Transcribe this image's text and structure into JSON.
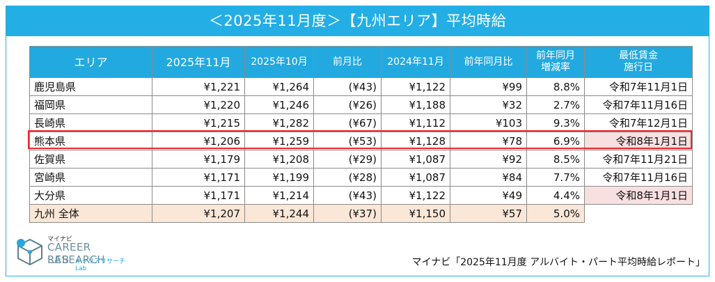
{
  "title": "＜2025年11月度＞【九州エリア】平均時給",
  "headers": {
    "area": "エリア",
    "nov2025": "2025年11月",
    "oct2025": "2025年10月",
    "mom": "前月比",
    "nov2024": "2024年11月",
    "yoy": "前年同月比",
    "yoy_rate_l1": "前年同月",
    "yoy_rate_l2": "増減率",
    "minwage_l1": "最低賃金",
    "minwage_l2": "施行日"
  },
  "rows": [
    {
      "area": "鹿児島県",
      "nov2025": "¥1,221",
      "oct2025": "¥1,264",
      "mom": "(¥43)",
      "nov2024": "¥1,122",
      "yoy": "¥99",
      "rate": "8.8%",
      "date": "令和7年11月1日"
    },
    {
      "area": "福岡県",
      "nov2025": "¥1,220",
      "oct2025": "¥1,246",
      "mom": "(¥26)",
      "nov2024": "¥1,188",
      "yoy": "¥32",
      "rate": "2.7%",
      "date": "令和7年11月16日"
    },
    {
      "area": "長崎県",
      "nov2025": "¥1,215",
      "oct2025": "¥1,282",
      "mom": "(¥67)",
      "nov2024": "¥1,112",
      "yoy": "¥103",
      "rate": "9.3%",
      "date": "令和7年12月1日"
    },
    {
      "area": "熊本県",
      "nov2025": "¥1,206",
      "oct2025": "¥1,259",
      "mom": "(¥53)",
      "nov2024": "¥1,128",
      "yoy": "¥78",
      "rate": "6.9%",
      "date": "令和8年1月1日"
    },
    {
      "area": "佐賀県",
      "nov2025": "¥1,179",
      "oct2025": "¥1,208",
      "mom": "(¥29)",
      "nov2024": "¥1,087",
      "yoy": "¥92",
      "rate": "8.5%",
      "date": "令和7年11月21日"
    },
    {
      "area": "宮崎県",
      "nov2025": "¥1,171",
      "oct2025": "¥1,199",
      "mom": "(¥28)",
      "nov2024": "¥1,087",
      "yoy": "¥84",
      "rate": "7.7%",
      "date": "令和7年11月16日"
    },
    {
      "area": "大分県",
      "nov2025": "¥1,171",
      "oct2025": "¥1,214",
      "mom": "(¥43)",
      "nov2024": "¥1,122",
      "yoy": "¥49",
      "rate": "4.4%",
      "date": "令和8年1月1日"
    }
  ],
  "total": {
    "area": "九州 全体",
    "nov2025": "¥1,207",
    "oct2025": "¥1,244",
    "mom": "(¥37)",
    "nov2024": "¥1,150",
    "yoy": "¥57",
    "rate": "5.0%"
  },
  "logo": {
    "kana": "マイナビ",
    "line1": "CAREER RESEARCH",
    "line2": "LAB",
    "line2_sub": "キャリアリサーチLab"
  },
  "source": "マイナビ「2025年11月度 アルバイト・パート平均時給レポート」",
  "colors": {
    "header_blue": "#22a9e0",
    "negative_red": "#e0141c",
    "highlight_red": "#e52a2f",
    "total_row": "#fbe7d7",
    "date_pink": "#f8dfe0"
  }
}
